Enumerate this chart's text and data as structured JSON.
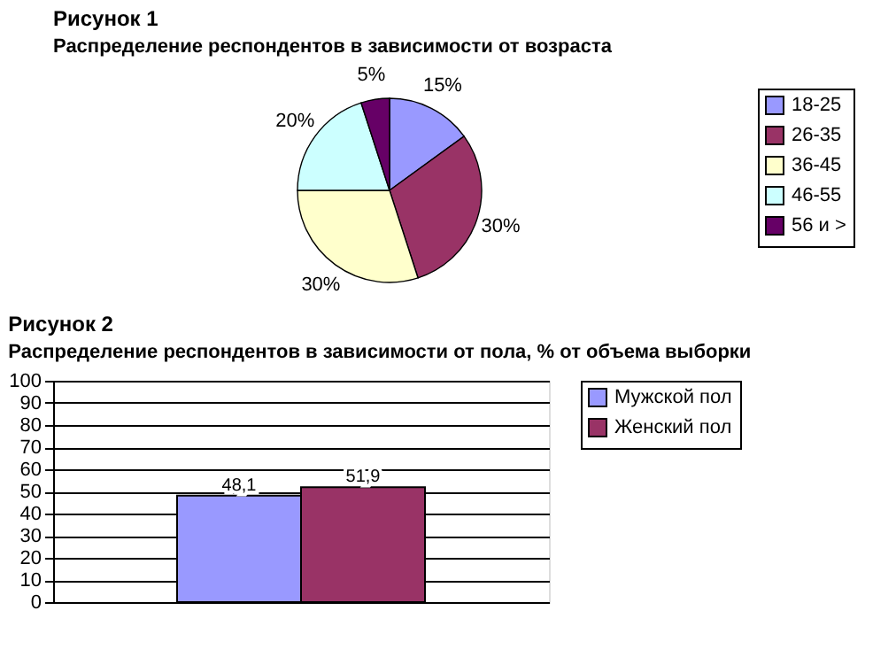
{
  "chart_data": [
    {
      "type": "pie",
      "title": "Рисунок 1",
      "subtitle": "Распределение респондентов в зависимости от возраста",
      "categories": [
        "18-25",
        "26-35",
        "36-45",
        "46-55",
        "56 и >"
      ],
      "values": [
        15,
        30,
        30,
        20,
        5
      ],
      "colors": [
        "#9999ff",
        "#993366",
        "#ffffcc",
        "#ccffff",
        "#660066"
      ],
      "value_labels": [
        "15%",
        "30%",
        "30%",
        "20%",
        "5%"
      ],
      "legend": "right"
    },
    {
      "type": "bar",
      "title": "Рисунок 2",
      "subtitle": "Распределение респондентов в зависимости от пола, % от объема выборки",
      "categories": [
        null
      ],
      "series": [
        {
          "name": "Мужской пол",
          "color": "#9999ff",
          "values": [
            48.1
          ],
          "value_labels": [
            "48,1"
          ]
        },
        {
          "name": "Женский пол",
          "color": "#993366",
          "values": [
            51.9
          ],
          "value_labels": [
            "51,9"
          ]
        }
      ],
      "ylim": [
        0,
        100
      ],
      "yticks": [
        0,
        10,
        20,
        30,
        40,
        50,
        60,
        70,
        80,
        90,
        100
      ],
      "grid": "y",
      "legend": "right"
    }
  ]
}
